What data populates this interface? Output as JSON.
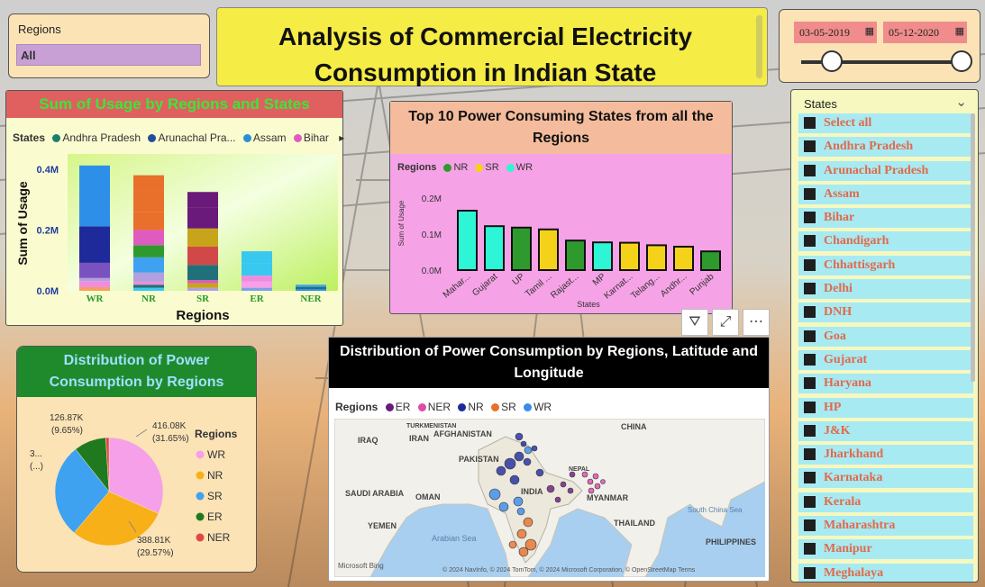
{
  "title": "Analysis of Commercial Electricity Consumption in Indian State",
  "regions_slicer": {
    "label": "Regions",
    "selected": "All"
  },
  "date_slicer": {
    "start": "03-05-2019",
    "end": "05-12-2020"
  },
  "stacked_bar": {
    "title": "Sum of Usage by Regions and States",
    "legend_title": "States",
    "legend_items": [
      {
        "name": "Andhra Pradesh",
        "color": "#1a7f6e"
      },
      {
        "name": "Arunachal Pra...",
        "color": "#1f4e9a"
      },
      {
        "name": "Assam",
        "color": "#2a8fd6"
      },
      {
        "name": "Bihar",
        "color": "#e05bc0"
      }
    ],
    "legend_more": "▸",
    "ylabel": "Sum of Usage",
    "xlabel": "Regions",
    "yticks": [
      "0.0M",
      "0.2M",
      "0.4M"
    ],
    "categories": [
      "WR",
      "NR",
      "SR",
      "ER",
      "NER"
    ]
  },
  "top10": {
    "title": "Top 10 Power Consuming States from all the Regions",
    "legend_title": "Regions",
    "legend_items": [
      {
        "name": "NR",
        "color": "#2e9a2e"
      },
      {
        "name": "SR",
        "color": "#f5d21a"
      },
      {
        "name": "WR",
        "color": "#2ef5d5"
      }
    ],
    "ylabel": "Sum of Usage",
    "xlabel": "States",
    "yticks": [
      "0.0M",
      "0.1M",
      "0.2M"
    ],
    "categories": [
      "Mahar...",
      "Gujarat",
      "UP",
      "Tamil ...",
      "Rajast...",
      "MP",
      "Karnat...",
      "Telang...",
      "Andhr...",
      "Punjab"
    ]
  },
  "pie": {
    "title": "Distribution of Power Consumption by Regions",
    "legend_title": "Regions",
    "legend_items": [
      "WR",
      "NR",
      "SR",
      "ER",
      "NER"
    ],
    "labels": [
      {
        "value": "416.08K",
        "pct": "(31.65%)"
      },
      {
        "value": "388.81K",
        "pct": "(29.57%)"
      },
      {
        "value": "3...",
        "pct": "(...)"
      },
      {
        "value": "126.87K",
        "pct": "(9.65%)"
      }
    ]
  },
  "map": {
    "title": "Distribution of Power Consumption by Regions, Latitude and Longitude",
    "legend_title": "Regions",
    "legend_items": [
      {
        "name": "ER",
        "color": "#6a1a7a"
      },
      {
        "name": "NER",
        "color": "#e04aa8"
      },
      {
        "name": "NR",
        "color": "#1f2a9a"
      },
      {
        "name": "SR",
        "color": "#e8702a"
      },
      {
        "name": "WR",
        "color": "#3a8ae8"
      }
    ],
    "places": [
      "CHINA",
      "TURKMENISTAN",
      "IRAQ",
      "IRAN",
      "AFGHANISTAN",
      "PAKISTAN",
      "NEPAL",
      "INDIA",
      "SAUDI ARABIA",
      "OMAN",
      "MYANMAR",
      "YEMEN",
      "THAILAND",
      "Arabian Sea",
      "South China Sea",
      "PHILIPPINES"
    ],
    "attribution": "© 2024 NavInfo, © 2024 TomTom, © 2024 Microsoft Corporation, © OpenStreetMap  Terms",
    "brand": "Microsoft Bing"
  },
  "visual_icons": [
    "filter-icon",
    "focus-mode-icon",
    "more-options-icon"
  ],
  "states_slicer": {
    "label": "States",
    "items": [
      "Select all",
      "Andhra Pradesh",
      "Arunachal Pradesh",
      "Assam",
      "Bihar",
      "Chandigarh",
      "Chhattisgarh",
      "Delhi",
      "DNH",
      "Goa",
      "Gujarat",
      "Haryana",
      "HP",
      "J&K",
      "Jharkhand",
      "Karnataka",
      "Kerala",
      "Maharashtra",
      "Manipur",
      "Meghalaya"
    ]
  },
  "chart_data": [
    {
      "type": "bar",
      "title": "Sum of Usage by Regions and States",
      "xlabel": "Regions",
      "ylabel": "Sum of Usage",
      "categories": [
        "WR",
        "NR",
        "SR",
        "ER",
        "NER"
      ],
      "values": [
        0.42,
        0.39,
        0.37,
        0.13,
        0.02
      ],
      "ylim": [
        0,
        0.45
      ],
      "unit": "M"
    },
    {
      "type": "bar",
      "title": "Top 10 Power Consuming States from all the Regions",
      "xlabel": "States",
      "ylabel": "Sum of Usage",
      "categories": [
        "Mahar...",
        "Gujarat",
        "UP",
        "Tamil ...",
        "Rajast...",
        "MP",
        "Karnat...",
        "Telang...",
        "Andhr...",
        "Punjab"
      ],
      "values": [
        0.165,
        0.122,
        0.118,
        0.113,
        0.082,
        0.077,
        0.076,
        0.069,
        0.065,
        0.052
      ],
      "regions": [
        "WR",
        "WR",
        "NR",
        "SR",
        "NR",
        "WR",
        "SR",
        "SR",
        "SR",
        "NR"
      ],
      "ylim": [
        0,
        0.2
      ],
      "unit": "M"
    },
    {
      "type": "pie",
      "title": "Distribution of Power Consumption by Regions",
      "categories": [
        "WR",
        "NR",
        "SR",
        "ER",
        "NER"
      ],
      "values": [
        416080,
        388810,
        370000,
        126870,
        13000
      ]
    }
  ]
}
